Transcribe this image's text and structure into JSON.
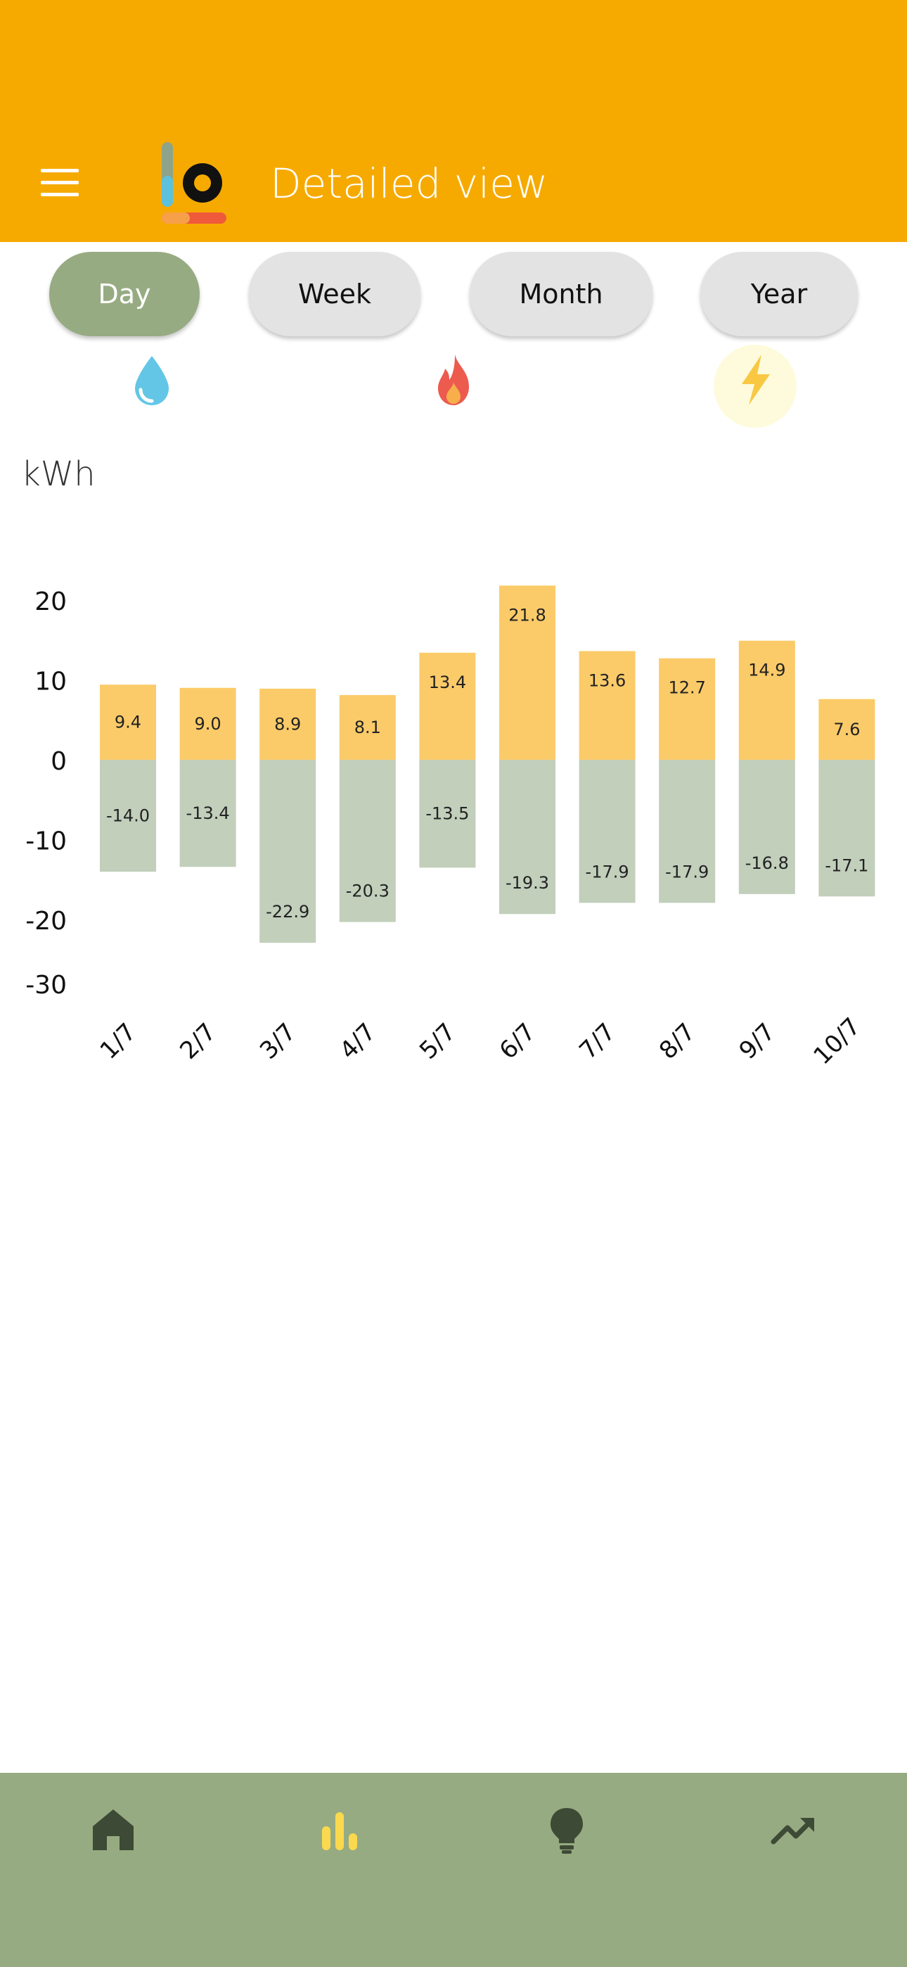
{
  "colors": {
    "header_bg": "#f6aa00",
    "active_green": "#97ab82",
    "segment_inactive": "#e3e3e3",
    "nav_bg": "#97ab82",
    "bar_positive": "#fbcb69",
    "bar_negative": "#c1cfbb",
    "nav_icon_dark": "#3d4a35",
    "nav_icon_active": "#fbd94e"
  },
  "header": {
    "title": "Detailed view",
    "menu_icon": "hamburger-icon",
    "logo": "app-logo"
  },
  "period_tabs": [
    {
      "label": "Day",
      "active": true
    },
    {
      "label": "Week",
      "active": false
    },
    {
      "label": "Month",
      "active": false
    },
    {
      "label": "Year",
      "active": false
    }
  ],
  "utility_icons": [
    {
      "icon": "water-drop-icon",
      "selected": false
    },
    {
      "icon": "flame-icon",
      "selected": false
    },
    {
      "icon": "lightning-icon",
      "selected": true
    }
  ],
  "chart_data": {
    "type": "bar",
    "ylabel": "kWh",
    "categories": [
      "1/7",
      "2/7",
      "3/7",
      "4/7",
      "5/7",
      "6/7",
      "7/7",
      "8/7",
      "9/7",
      "10/7"
    ],
    "series": [
      {
        "values": [
          9.4,
          9.0,
          8.9,
          8.1,
          13.4,
          21.8,
          13.6,
          12.7,
          14.9,
          7.6
        ]
      },
      {
        "values": [
          -14.0,
          -13.4,
          -22.9,
          -20.3,
          -13.5,
          -19.3,
          -17.9,
          -17.9,
          -16.8,
          -17.1
        ]
      }
    ],
    "value_labels": {
      "positive": [
        "9.4",
        "9.0",
        "8.9",
        "8.1",
        "13.4",
        "21.8",
        "13.6",
        "12.7",
        "14.9",
        "7.6"
      ],
      "negative": [
        "-14.0",
        "-13.4",
        "-22.9",
        "-20.3",
        "-13.5",
        "-19.3",
        "-17.9",
        "-17.9",
        "-16.8",
        "-17.1"
      ]
    },
    "yticks": [
      "20",
      "10",
      "0",
      "-10",
      "-20",
      "-30"
    ],
    "ylim": [
      -30,
      20
    ],
    "grid": false,
    "legend": "none"
  },
  "bottom_nav": [
    {
      "icon": "home-icon",
      "active": false
    },
    {
      "icon": "bar-chart-icon",
      "active": true
    },
    {
      "icon": "lightbulb-icon",
      "active": false
    },
    {
      "icon": "trending-up-icon",
      "active": false
    }
  ]
}
